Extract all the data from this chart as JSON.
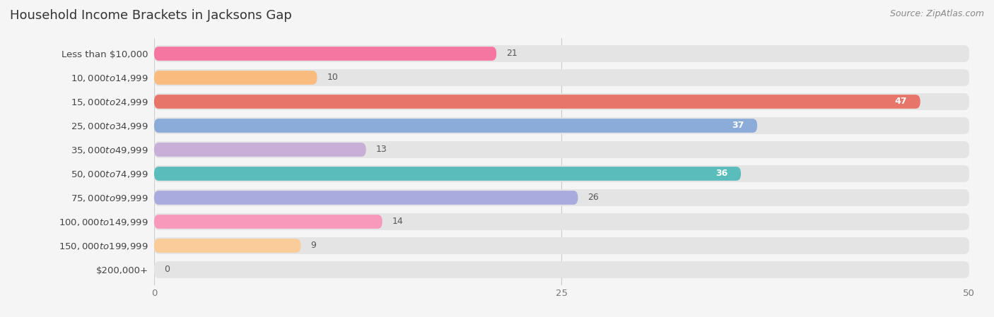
{
  "title": "Household Income Brackets in Jacksons Gap",
  "source": "Source: ZipAtlas.com",
  "categories": [
    "Less than $10,000",
    "$10,000 to $14,999",
    "$15,000 to $24,999",
    "$25,000 to $34,999",
    "$35,000 to $49,999",
    "$50,000 to $74,999",
    "$75,000 to $99,999",
    "$100,000 to $149,999",
    "$150,000 to $199,999",
    "$200,000+"
  ],
  "values": [
    21,
    10,
    47,
    37,
    13,
    36,
    26,
    14,
    9,
    0
  ],
  "bar_colors": [
    "#f576a0",
    "#f9bc7e",
    "#e8756a",
    "#8babd8",
    "#c9aed8",
    "#5bbcbc",
    "#a9aadd",
    "#f899bb",
    "#f9cc99",
    "#f2b5aa"
  ],
  "value_inside_threshold": 34,
  "xlim": [
    0,
    50
  ],
  "xticks": [
    0,
    25,
    50
  ],
  "background_color": "#f5f5f5",
  "bar_bg_color": "#e4e4e4",
  "title_fontsize": 13,
  "label_fontsize": 9.5,
  "value_fontsize": 9,
  "source_fontsize": 9
}
